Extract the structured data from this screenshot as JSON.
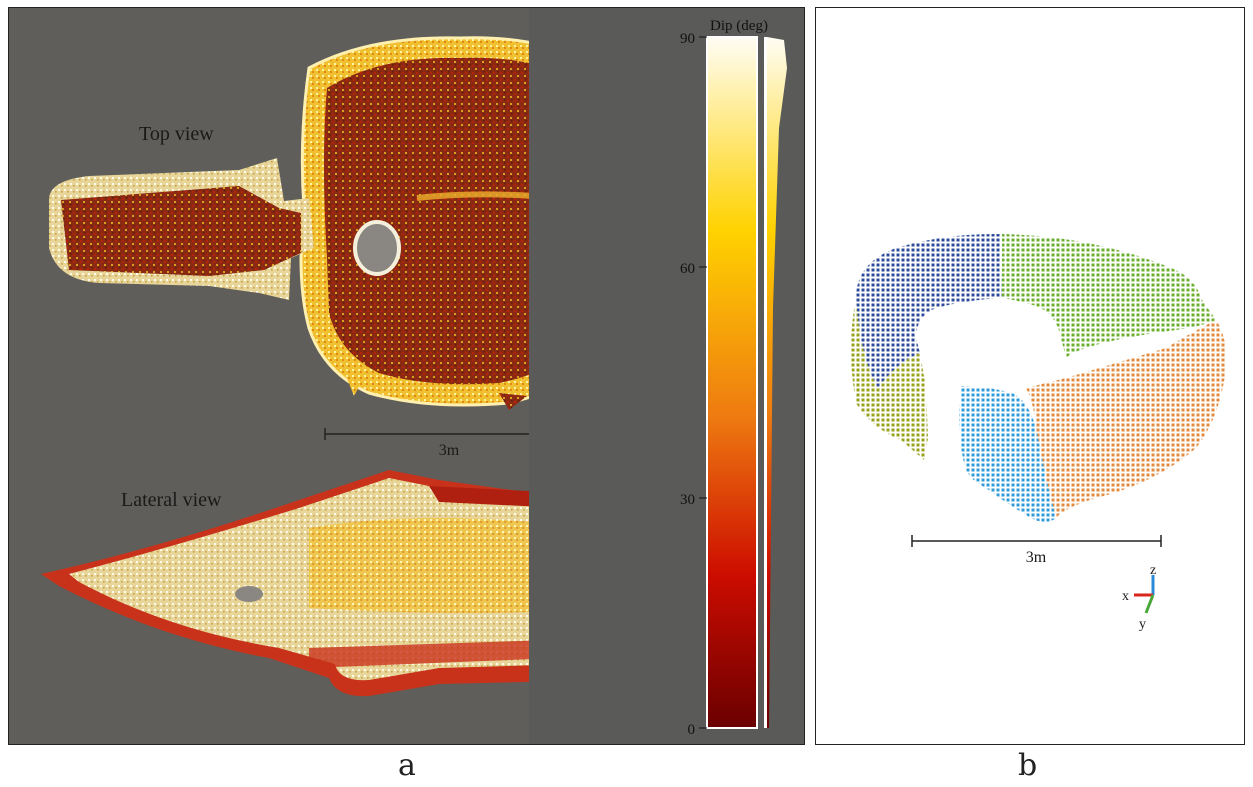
{
  "panel_a": {
    "letter": "a",
    "top_view_label": "Top view",
    "lateral_view_label": "Lateral view",
    "scale_bar_label": "3m",
    "colorbar": {
      "title": "Dip (deg)",
      "ticks": [
        "90",
        "60",
        "30",
        "0"
      ],
      "colors": {
        "high": "#fffdf4",
        "mid_high": "#ffd200",
        "mid": "#ee7a10",
        "mid_low": "#cc0c00",
        "low": "#6a0000"
      }
    },
    "background_color": "#5f5e5a"
  },
  "panel_b": {
    "letter": "b",
    "scale_bar_label": "3m",
    "axes": {
      "x": "x",
      "y": "y",
      "z": "z"
    },
    "segment_colors": {
      "navy": "#2c4a9c",
      "green": "#6aae2c",
      "olive": "#96a21a",
      "orange": "#e18a3c",
      "sky": "#2e9ad8"
    },
    "axis_colors": {
      "x": "#d8261c",
      "y": "#4aa83a",
      "z": "#2a8ad6"
    }
  }
}
